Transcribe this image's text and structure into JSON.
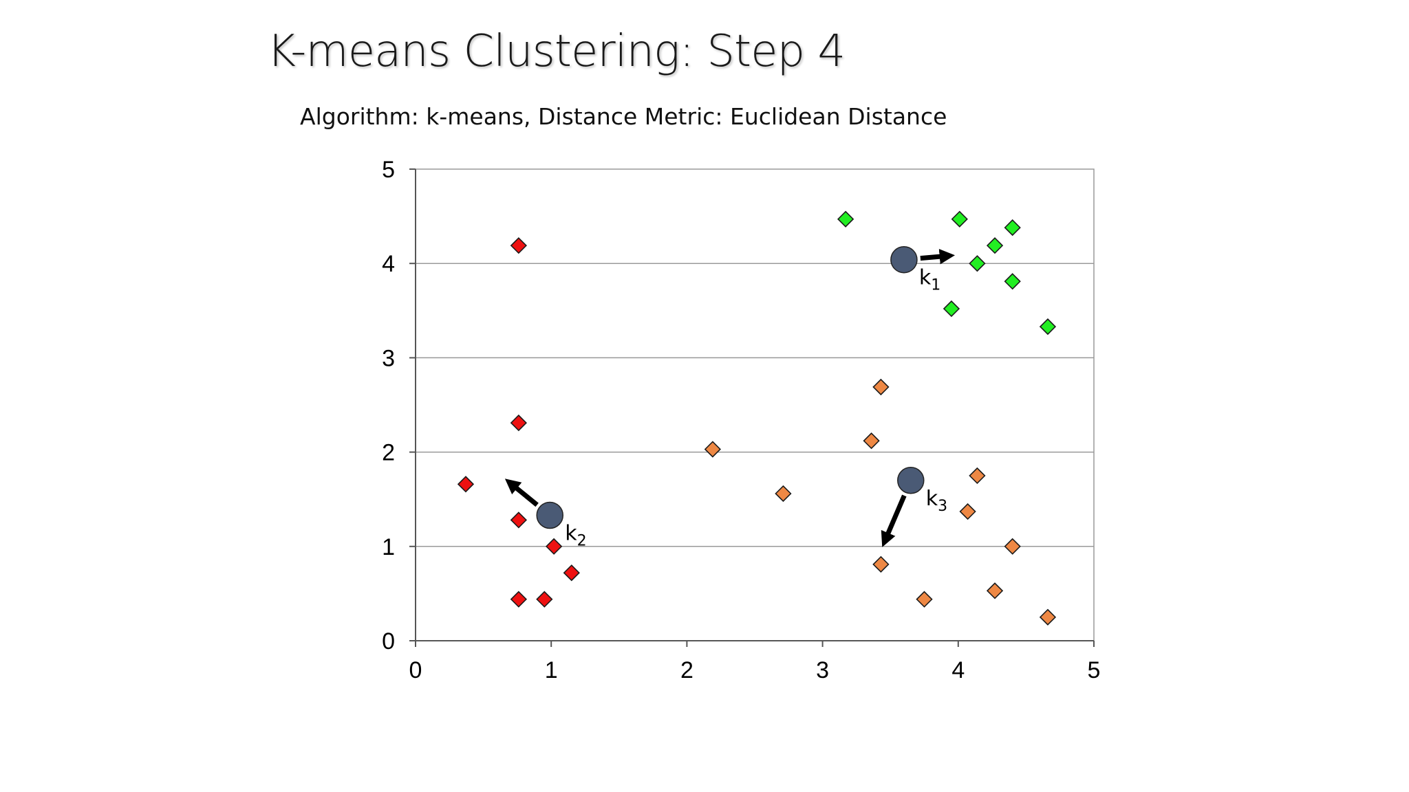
{
  "slide": {
    "title": "K-means Clustering: Step 4",
    "subtitle": "Algorithm: k-means, Distance Metric: Euclidean Distance"
  },
  "chart_data": {
    "type": "scatter",
    "title": "",
    "xlabel": "",
    "ylabel": "",
    "xlim": [
      0,
      5
    ],
    "ylim": [
      0,
      5
    ],
    "xticks": [
      0,
      1,
      2,
      3,
      4,
      5
    ],
    "yticks": [
      0,
      1,
      2,
      3,
      4,
      5
    ],
    "grid": "horizontal",
    "legend": "none",
    "colors": {
      "cluster1": "#22ee22",
      "cluster2": "#ee1111",
      "cluster3": "#ee8844",
      "centroid": "#4a5a75",
      "arrow": "#000000",
      "grid": "#999999"
    },
    "series": [
      {
        "color_key": "cluster1",
        "points": [
          [
            3.17,
            4.47
          ],
          [
            4.01,
            4.47
          ],
          [
            4.4,
            4.38
          ],
          [
            4.27,
            4.19
          ],
          [
            4.14,
            4.0
          ],
          [
            4.4,
            3.81
          ],
          [
            3.95,
            3.52
          ],
          [
            4.66,
            3.33
          ]
        ]
      },
      {
        "color_key": "cluster2",
        "points": [
          [
            0.76,
            4.19
          ],
          [
            0.76,
            2.31
          ],
          [
            0.37,
            1.66
          ],
          [
            0.76,
            1.28
          ],
          [
            1.02,
            1.0
          ],
          [
            1.15,
            0.72
          ],
          [
            0.76,
            0.44
          ],
          [
            0.95,
            0.44
          ]
        ]
      },
      {
        "color_key": "cluster3",
        "points": [
          [
            3.43,
            2.69
          ],
          [
            2.19,
            2.03
          ],
          [
            3.36,
            2.12
          ],
          [
            4.14,
            1.75
          ],
          [
            2.71,
            1.56
          ],
          [
            4.07,
            1.37
          ],
          [
            4.4,
            1.0
          ],
          [
            3.43,
            0.81
          ],
          [
            4.27,
            0.53
          ],
          [
            3.75,
            0.44
          ],
          [
            4.66,
            0.25
          ]
        ]
      }
    ],
    "centroids": [
      {
        "label": "k",
        "sub": "1",
        "x": 3.6,
        "y": 4.04,
        "arrow_to": [
          4.0,
          4.09
        ]
      },
      {
        "label": "k",
        "sub": "2",
        "x": 0.99,
        "y": 1.33,
        "arrow_to": [
          0.64,
          1.74
        ]
      },
      {
        "label": "k",
        "sub": "3",
        "x": 3.65,
        "y": 1.7,
        "arrow_to": [
          3.43,
          0.96
        ]
      }
    ]
  }
}
